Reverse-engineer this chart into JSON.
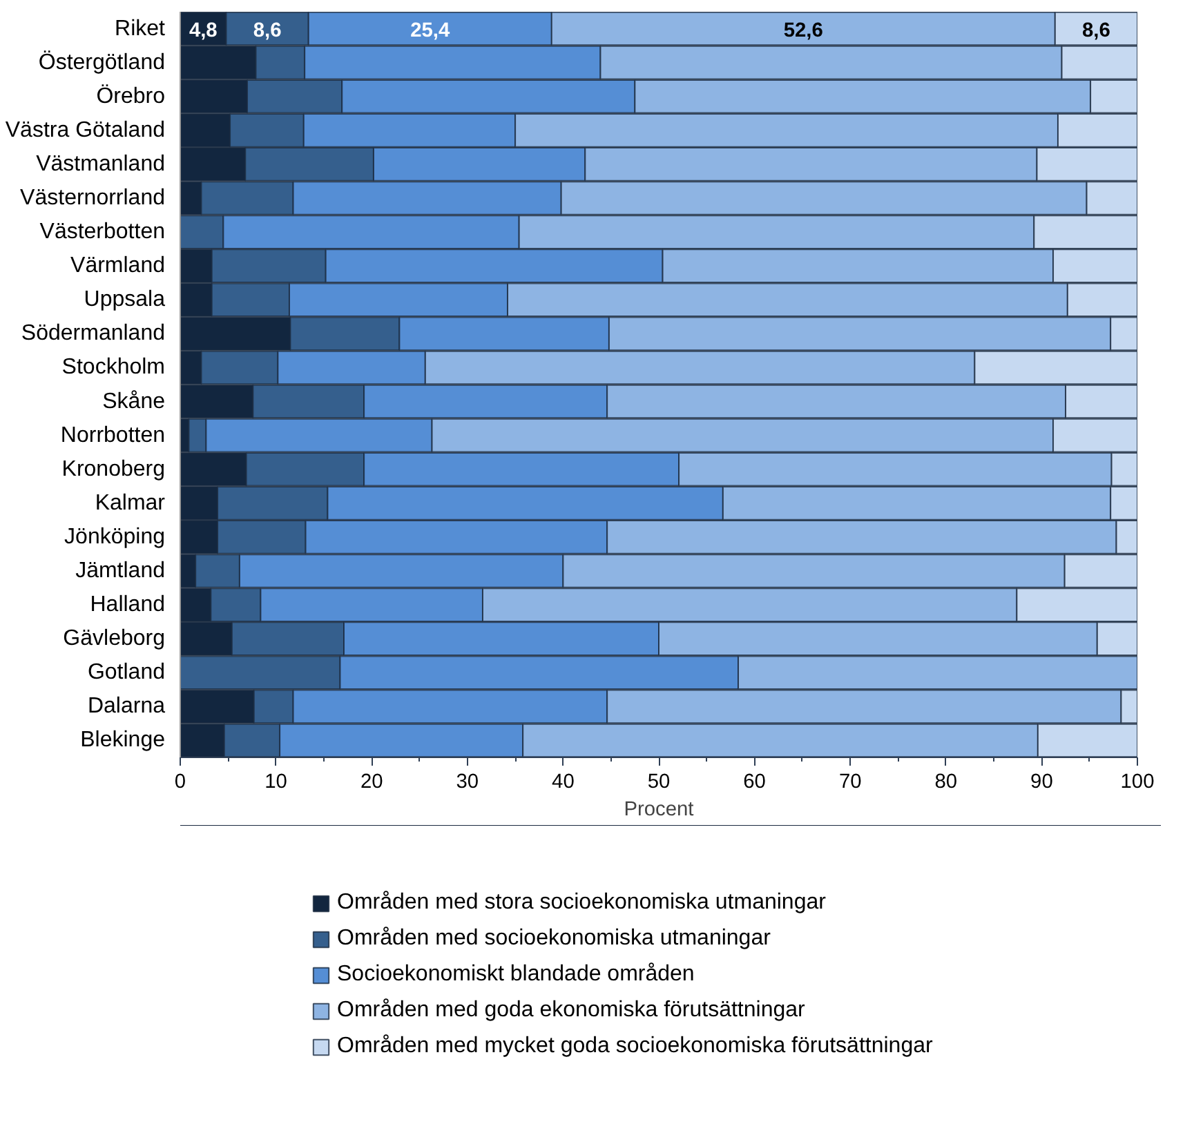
{
  "chart_data": {
    "type": "bar",
    "orientation": "horizontal",
    "stacked": true,
    "xlabel": "Procent",
    "categories": [
      "Riket",
      "Östergötland",
      "Örebro",
      "Västra Götaland",
      "Västmanland",
      "Västernorrland",
      "Västerbotten",
      "Värmland",
      "Uppsala",
      "Södermanland",
      "Stockholm",
      "Skåne",
      "Norrbotten",
      "Kronoberg",
      "Kalmar",
      "Jönköping",
      "Jämtland",
      "Halland",
      "Gävleborg",
      "Gotland",
      "Dalarna",
      "Blekinge"
    ],
    "series": [
      {
        "name": "Områden med stora socioekonomiska utmaningar",
        "color": "#12263f",
        "values": [
          4.8,
          7.9,
          7.0,
          5.2,
          6.8,
          2.2,
          0,
          3.3,
          3.3,
          11.5,
          2.2,
          7.6,
          0.9,
          6.9,
          3.9,
          3.9,
          1.6,
          3.2,
          5.4,
          0,
          7.7,
          4.6
        ],
        "value_labels": [
          "4,8",
          null,
          null,
          null,
          null,
          null,
          null,
          null,
          null,
          null,
          null,
          null,
          null,
          null,
          null,
          null,
          null,
          null,
          null,
          null,
          null,
          null
        ]
      },
      {
        "name": "Områden med socioekonomiska utmaningar",
        "color": "#355f8d",
        "values": [
          8.6,
          5.1,
          9.9,
          7.7,
          13.4,
          9.6,
          4.5,
          11.9,
          8.1,
          11.4,
          8.0,
          11.6,
          1.8,
          12.3,
          11.5,
          9.2,
          4.6,
          5.2,
          11.7,
          16.7,
          4.1,
          5.8
        ],
        "value_labels": [
          "8,6",
          null,
          null,
          null,
          null,
          null,
          null,
          null,
          null,
          null,
          null,
          null,
          null,
          null,
          null,
          null,
          null,
          null,
          null,
          null,
          null,
          null
        ]
      },
      {
        "name": "Socioekonomiskt blandade områden",
        "color": "#558ed5",
        "values": [
          25.4,
          30.9,
          30.6,
          22.1,
          22.1,
          28.0,
          30.9,
          35.2,
          22.8,
          21.9,
          15.4,
          25.4,
          23.6,
          32.9,
          41.3,
          31.5,
          33.8,
          23.2,
          32.9,
          41.6,
          32.8,
          25.4
        ],
        "value_labels": [
          "25,4",
          null,
          null,
          null,
          null,
          null,
          null,
          null,
          null,
          null,
          null,
          null,
          null,
          null,
          null,
          null,
          null,
          null,
          null,
          null,
          null,
          null
        ]
      },
      {
        "name": "Områden med goda ekonomiska förutsättningar",
        "color": "#8eb4e3",
        "values": [
          52.6,
          48.2,
          47.6,
          56.7,
          47.2,
          54.9,
          53.8,
          40.8,
          58.5,
          52.4,
          57.4,
          47.9,
          64.9,
          45.2,
          40.5,
          53.2,
          52.4,
          55.8,
          45.8,
          41.7,
          53.7,
          53.8
        ],
        "value_labels": [
          "52,6",
          null,
          null,
          null,
          null,
          null,
          null,
          null,
          null,
          null,
          null,
          null,
          null,
          null,
          null,
          null,
          null,
          null,
          null,
          null,
          null,
          null
        ]
      },
      {
        "name": "Områden med mycket goda socioekonomiska förutsättningar",
        "color": "#c6d9f1",
        "values": [
          8.6,
          7.9,
          4.9,
          8.3,
          10.5,
          5.3,
          10.8,
          8.8,
          7.3,
          2.8,
          17.0,
          7.5,
          8.8,
          2.7,
          2.8,
          2.2,
          7.6,
          12.6,
          4.2,
          0,
          1.7,
          10.4
        ],
        "value_labels": [
          "8,6",
          null,
          null,
          null,
          null,
          null,
          null,
          null,
          null,
          null,
          null,
          null,
          null,
          null,
          null,
          null,
          null,
          null,
          null,
          null,
          null,
          null
        ]
      }
    ],
    "xlim": [
      0,
      100
    ],
    "xticks": [
      0,
      10,
      20,
      30,
      40,
      50,
      60,
      70,
      80,
      90,
      100
    ],
    "legend": "bottom"
  }
}
